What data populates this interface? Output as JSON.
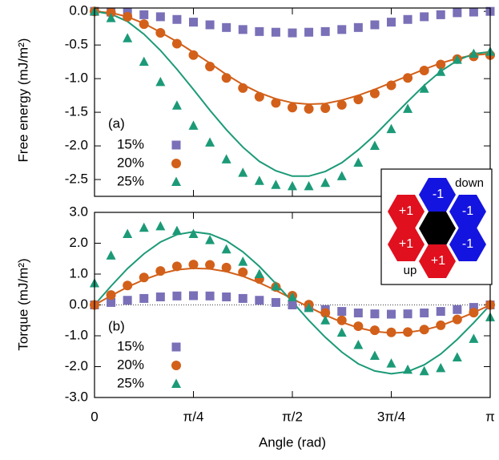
{
  "chart_data": [
    {
      "type": "scatter",
      "ylabel": "Free energy (mJ/m²)",
      "annotation": "(a)",
      "x": [
        0,
        0.1309,
        0.2618,
        0.3927,
        0.5236,
        0.6545,
        0.7854,
        0.9163,
        1.0472,
        1.1781,
        1.309,
        1.4399,
        1.5708,
        1.7017,
        1.8326,
        1.9635,
        2.0944,
        2.2253,
        2.3562,
        2.4871,
        2.618,
        2.7489,
        2.8798,
        3.0107,
        3.1416
      ],
      "xlim": [
        0,
        3.1416
      ],
      "ylim": [
        -2.75,
        0.05
      ],
      "yticks": [
        {
          "value": 0,
          "label": "0.0"
        },
        {
          "value": -0.5,
          "label": "-0.5"
        },
        {
          "value": -1,
          "label": "-1.0"
        },
        {
          "value": -1.5,
          "label": "-1.5"
        },
        {
          "value": -2,
          "label": "-2.0"
        },
        {
          "value": -2.5,
          "label": "-2.5"
        }
      ],
      "series": [
        {
          "name": "15%",
          "marker": "square",
          "color": "#7a70b8",
          "values": [
            0,
            -0.01,
            -0.02,
            -0.05,
            -0.08,
            -0.12,
            -0.16,
            -0.2,
            -0.24,
            -0.27,
            -0.3,
            -0.31,
            -0.32,
            -0.31,
            -0.3,
            -0.27,
            -0.24,
            -0.2,
            -0.16,
            -0.12,
            -0.08,
            -0.05,
            -0.02,
            -0.01,
            0
          ]
        },
        {
          "name": "20%",
          "marker": "circle",
          "color": "#d2601a",
          "values": [
            0,
            -0.02,
            -0.08,
            -0.19,
            -0.32,
            -0.48,
            -0.65,
            -0.82,
            -0.99,
            -1.14,
            -1.27,
            -1.36,
            -1.43,
            -1.45,
            -1.44,
            -1.39,
            -1.31,
            -1.22,
            -1.1,
            -0.99,
            -0.88,
            -0.79,
            -0.71,
            -0.67,
            -0.65
          ]
        },
        {
          "name": "25%",
          "marker": "triangle",
          "color": "#1c9a78",
          "values": [
            0,
            -0.1,
            -0.4,
            -0.75,
            -1.05,
            -1.4,
            -1.7,
            -1.95,
            -2.2,
            -2.4,
            -2.52,
            -2.58,
            -2.6,
            -2.6,
            -2.55,
            -2.45,
            -2.25,
            -2,
            -1.75,
            -1.45,
            -1.15,
            -0.9,
            -0.72,
            -0.63,
            -0.6
          ]
        },
        {
          "marker": "line",
          "color": "#d2601a",
          "values": [
            0,
            -0.02,
            -0.08,
            -0.18,
            -0.31,
            -0.45,
            -0.61,
            -0.77,
            -0.94,
            -1.09,
            -1.21,
            -1.3,
            -1.36,
            -1.38,
            -1.37,
            -1.32,
            -1.25,
            -1.16,
            -1.06,
            -0.96,
            -0.86,
            -0.77,
            -0.7,
            -0.65,
            -0.63
          ]
        },
        {
          "marker": "line",
          "color": "#1c9a78",
          "values": [
            0,
            -0.04,
            -0.15,
            -0.34,
            -0.58,
            -0.86,
            -1.16,
            -1.47,
            -1.76,
            -2.02,
            -2.23,
            -2.37,
            -2.45,
            -2.45,
            -2.38,
            -2.25,
            -2.06,
            -1.84,
            -1.59,
            -1.34,
            -1.1,
            -0.89,
            -0.73,
            -0.63,
            -0.6
          ]
        }
      ]
    },
    {
      "type": "scatter",
      "ylabel": "Torque (mJ/m²)",
      "xlabel": "Angle (rad)",
      "annotation": "(b)",
      "zero_line": true,
      "x": [
        0,
        0.1309,
        0.2618,
        0.3927,
        0.5236,
        0.6545,
        0.7854,
        0.9163,
        1.0472,
        1.1781,
        1.309,
        1.4399,
        1.5708,
        1.7017,
        1.8326,
        1.9635,
        2.0944,
        2.2253,
        2.3562,
        2.4871,
        2.618,
        2.7489,
        2.8798,
        3.0107,
        3.1416
      ],
      "xlim": [
        0,
        3.1416
      ],
      "xticks": [
        0,
        {
          "value": 0.7854,
          "label": "π/4"
        },
        {
          "value": 1.5708,
          "label": "π/2"
        },
        {
          "value": 2.3562,
          "label": "3π/4"
        },
        {
          "value": 3.1416,
          "label": "π"
        }
      ],
      "ylim": [
        -3,
        3
      ],
      "yticks": [
        {
          "value": 3,
          "label": "3.0"
        },
        {
          "value": 2,
          "label": "2.0"
        },
        {
          "value": 1,
          "label": "1.0"
        },
        {
          "value": 0,
          "label": "0.0"
        },
        {
          "value": -1,
          "label": "-1.0"
        },
        {
          "value": -2,
          "label": "-2.0"
        },
        {
          "value": -3,
          "label": "-3.0"
        }
      ],
      "series": [
        {
          "name": "15%",
          "marker": "square",
          "color": "#7a70b8",
          "values": [
            0,
            0.08,
            0.15,
            0.21,
            0.26,
            0.29,
            0.3,
            0.29,
            0.26,
            0.21,
            0.15,
            0.08,
            0,
            -0.08,
            -0.15,
            -0.21,
            -0.26,
            -0.29,
            -0.3,
            -0.29,
            -0.26,
            -0.21,
            -0.15,
            -0.08,
            0
          ]
        },
        {
          "name": "20%",
          "marker": "circle",
          "color": "#d2601a",
          "values": [
            0,
            0.32,
            0.63,
            0.89,
            1.1,
            1.25,
            1.31,
            1.3,
            1.21,
            1.06,
            0.84,
            0.58,
            0.3,
            0.01,
            -0.26,
            -0.5,
            -0.69,
            -0.82,
            -0.89,
            -0.88,
            -0.8,
            -0.66,
            -0.47,
            -0.25,
            0
          ]
        },
        {
          "name": "25%",
          "marker": "triangle",
          "color": "#1c9a78",
          "values": [
            0.7,
            1.6,
            2.3,
            2.5,
            2.55,
            2.4,
            2.3,
            2.1,
            1.8,
            1.4,
            1,
            0.6,
            0.25,
            -0.1,
            -0.5,
            -0.9,
            -1.3,
            -1.65,
            -1.9,
            -2.1,
            -2.15,
            -2.05,
            -1.7,
            -1.1,
            -0.4
          ]
        },
        {
          "marker": "line",
          "color": "#d2601a",
          "values": [
            0,
            0.3,
            0.58,
            0.82,
            1.01,
            1.14,
            1.19,
            1.17,
            1.08,
            0.93,
            0.72,
            0.47,
            0.2,
            -0.07,
            -0.33,
            -0.56,
            -0.74,
            -0.86,
            -0.91,
            -0.89,
            -0.81,
            -0.67,
            -0.47,
            -0.25,
            0
          ]
        },
        {
          "marker": "line",
          "color": "#1c9a78",
          "values": [
            0,
            0.61,
            1.18,
            1.66,
            2.04,
            2.28,
            2.37,
            2.3,
            2.08,
            1.72,
            1.25,
            0.69,
            0.1,
            -0.5,
            -1.05,
            -1.53,
            -1.91,
            -2.14,
            -2.23,
            -2.16,
            -1.94,
            -1.59,
            -1.12,
            -0.58,
            0
          ]
        }
      ]
    }
  ],
  "inset": {
    "hexagons": [
      "-1",
      "+1",
      "-1",
      "+1",
      "-1",
      "+1"
    ],
    "labels": [
      "down",
      "up"
    ]
  }
}
